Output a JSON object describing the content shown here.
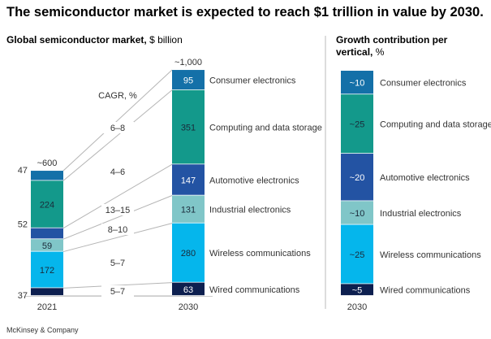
{
  "title": "The semiconductor market is expected to reach $1 trillion in value by 2030.",
  "footer": "McKinsey & Company",
  "colors": {
    "Consumer electronics": "#1470a8",
    "Computing and data storage": "#13998b",
    "Automotive electronics": "#2353a3",
    "Industrial electronics": "#80c6c8",
    "Wireless communications": "#05b6ec",
    "Wired communications": "#0d1f4f"
  },
  "chart_data": [
    {
      "type": "bar",
      "stacked": true,
      "title_bold": "Global semiconductor market,",
      "title_unit": "$ billion",
      "categories": [
        "2021",
        "2030"
      ],
      "totals_label": [
        "~600",
        "~1,000"
      ],
      "cagr_header": "CAGR, %",
      "series": [
        {
          "name": "Consumer electronics",
          "values": [
            47,
            95
          ],
          "cagr": "6–8"
        },
        {
          "name": "Computing and data storage",
          "values": [
            224,
            351
          ],
          "cagr": "4–6"
        },
        {
          "name": "Automotive electronics",
          "values": [
            52,
            147
          ],
          "cagr": "13–15"
        },
        {
          "name": "Industrial electronics",
          "values": [
            59,
            131
          ],
          "cagr": "8–10"
        },
        {
          "name": "Wireless communications",
          "values": [
            172,
            280
          ],
          "cagr": "5–7"
        },
        {
          "name": "Wired communications",
          "values": [
            37,
            63
          ],
          "cagr": "5–7"
        }
      ]
    },
    {
      "type": "bar",
      "stacked": true,
      "title_bold": "Growth contribution per vertical,",
      "title_unit": "%",
      "categories": [
        "2030"
      ],
      "series": [
        {
          "name": "Consumer electronics",
          "value": 10,
          "label": "~10"
        },
        {
          "name": "Computing and data storage",
          "value": 25,
          "label": "~25"
        },
        {
          "name": "Automotive electronics",
          "value": 20,
          "label": "~20"
        },
        {
          "name": "Industrial electronics",
          "value": 10,
          "label": "~10"
        },
        {
          "name": "Wireless communications",
          "value": 25,
          "label": "~25"
        },
        {
          "name": "Wired communications",
          "value": 5,
          "label": "~5"
        }
      ]
    }
  ]
}
